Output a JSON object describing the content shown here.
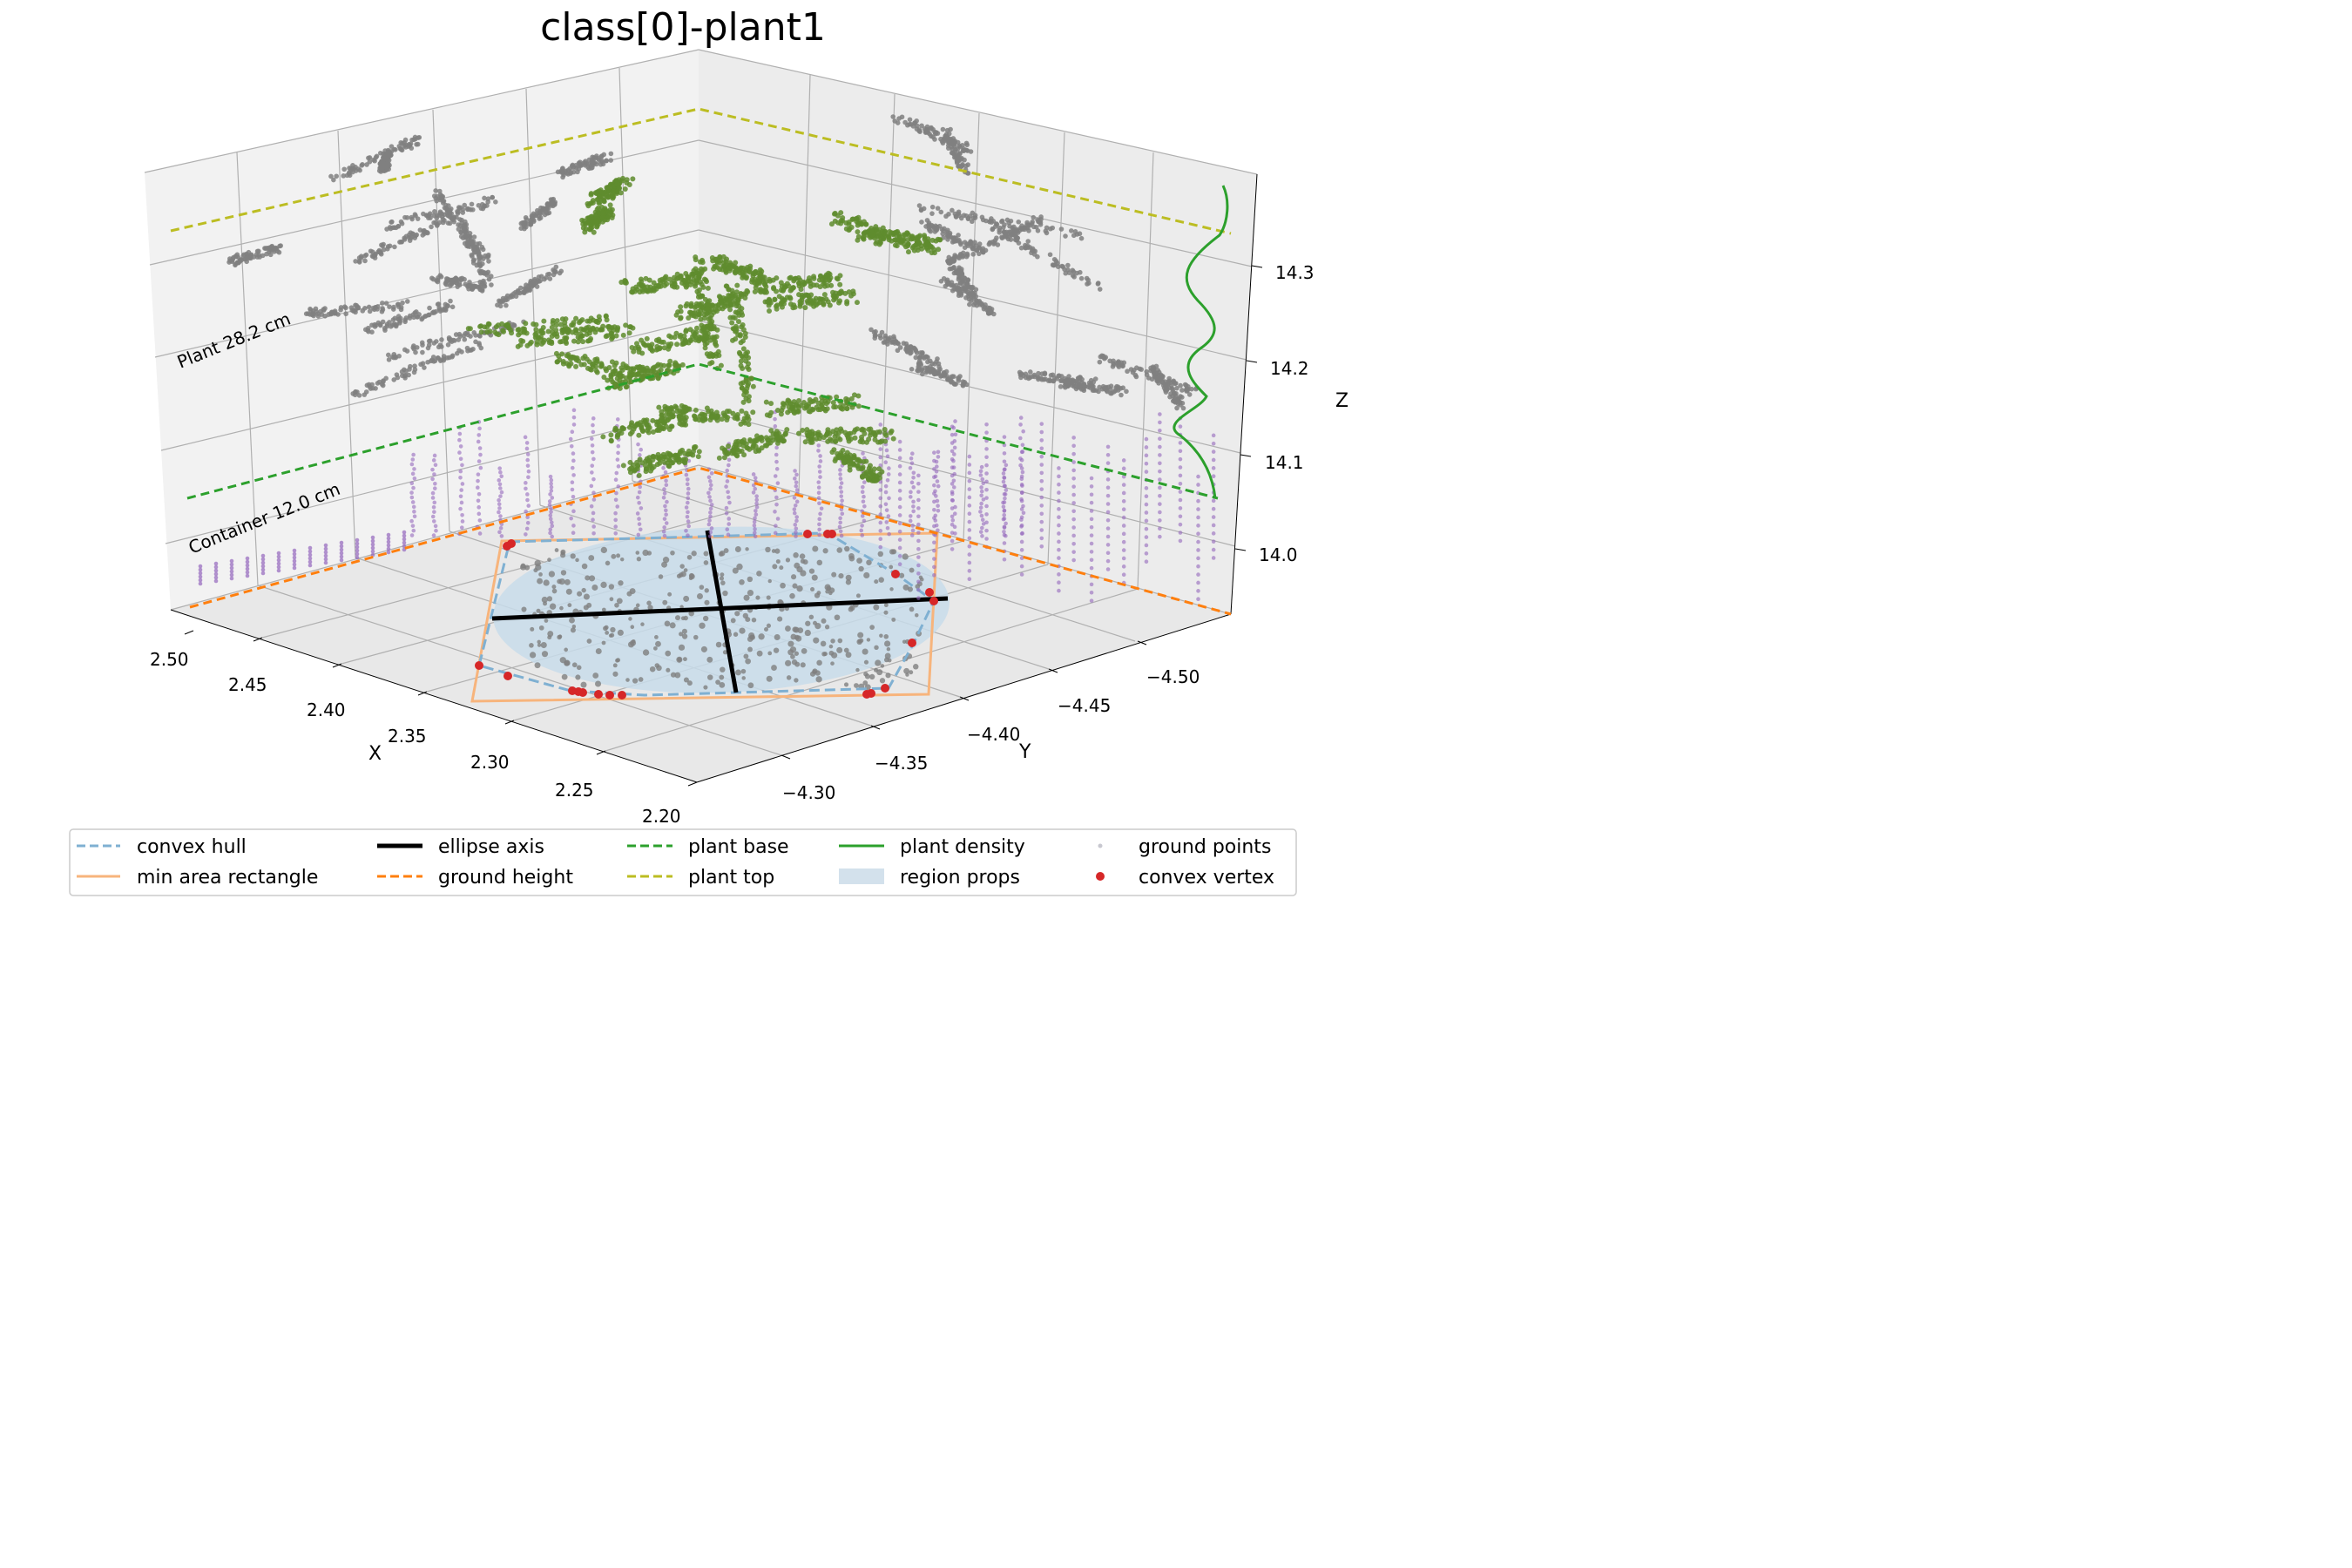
{
  "chart_data": {
    "type": "scatter",
    "projection": "3d",
    "title": "class[0]-plant1",
    "xlabel": "X",
    "ylabel": "Y",
    "zlabel": "Z",
    "x_ticks": [
      "2.50",
      "2.45",
      "2.40",
      "2.35",
      "2.30",
      "2.25",
      "2.20"
    ],
    "y_ticks": [
      "−4.30",
      "−4.35",
      "−4.40",
      "−4.45",
      "−4.50"
    ],
    "z_ticks": [
      "14.0",
      "14.1",
      "14.2",
      "14.3"
    ],
    "xlim": [
      2.2,
      2.52
    ],
    "ylim": [
      -4.28,
      -4.53
    ],
    "zlim": [
      13.95,
      14.38
    ],
    "grid": true,
    "legend_position": "bottom",
    "annotations": [
      "Plant 28.2 cm",
      "Container 12.0 cm"
    ],
    "levels": {
      "ground_height_z": 13.96,
      "plant_base_z": 14.08,
      "plant_top_z": 14.36
    },
    "legend": [
      {
        "label": "convex hull",
        "style": "dashed",
        "color": "#7fb0d2"
      },
      {
        "label": "min area rectangle",
        "style": "solid",
        "color": "#f7b47c"
      },
      {
        "label": "ellipse axis",
        "style": "solid-thick",
        "color": "#000000"
      },
      {
        "label": "ground height",
        "style": "dashed",
        "color": "#ff7f0e"
      },
      {
        "label": "plant base",
        "style": "dashed",
        "color": "#2ca02c"
      },
      {
        "label": "plant top",
        "style": "dashed",
        "color": "#bcbd22"
      },
      {
        "label": "plant density",
        "style": "solid",
        "color": "#2ca02c"
      },
      {
        "label": "region props",
        "style": "patch",
        "color": "#d3e1ec"
      },
      {
        "label": "ground points",
        "style": "dot",
        "color": "#c8c8d0"
      },
      {
        "label": "convex vertex",
        "style": "dot",
        "color": "#d62728"
      }
    ]
  }
}
